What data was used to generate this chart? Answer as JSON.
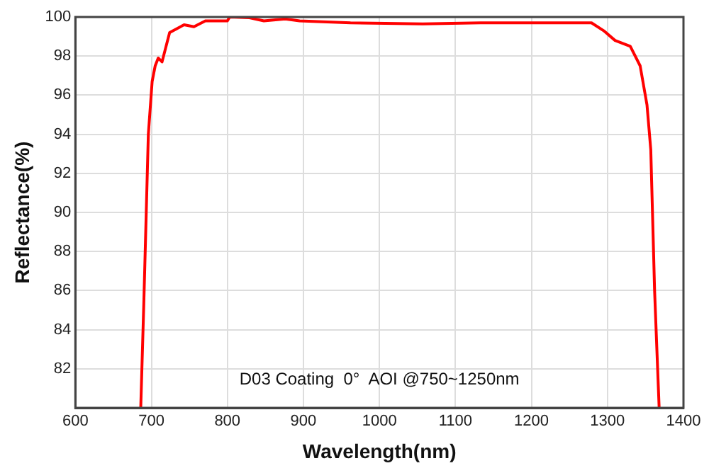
{
  "chart_data": {
    "type": "line",
    "xlabel": "Wavelength(nm)",
    "ylabel": "Reflectance(%)",
    "x": [
      686,
      690,
      696,
      701,
      705,
      709,
      714,
      724,
      743,
      756,
      771,
      800,
      803,
      829,
      848,
      876,
      895,
      962,
      1057,
      1133,
      1210,
      1279,
      1295,
      1310,
      1330,
      1343,
      1352,
      1357,
      1362,
      1368
    ],
    "series": [
      {
        "color": "#ff0000",
        "values": [
          80,
          85.3,
          94,
          96.7,
          97.5,
          97.9,
          97.7,
          99.2,
          99.6,
          99.5,
          99.8,
          99.8,
          100,
          99.96,
          99.8,
          99.9,
          99.8,
          99.7,
          99.65,
          99.7,
          99.7,
          99.7,
          99.3,
          98.8,
          98.5,
          97.5,
          95.5,
          93.2,
          86,
          80
        ]
      }
    ],
    "xlim": [
      600,
      1400
    ],
    "xticks": [
      600,
      700,
      800,
      900,
      1000,
      1100,
      1200,
      1300,
      1400
    ],
    "ylim": [
      80,
      100
    ],
    "yticks": [
      {
        "value": 80,
        "label": null
      },
      82,
      84,
      86,
      88,
      90,
      92,
      94,
      96,
      98,
      100
    ],
    "grid": true,
    "legend": false,
    "marker": "none",
    "line_style": "solid",
    "annotations": [
      "D03 Coating  0°  AOI @750~1250nm"
    ]
  }
}
